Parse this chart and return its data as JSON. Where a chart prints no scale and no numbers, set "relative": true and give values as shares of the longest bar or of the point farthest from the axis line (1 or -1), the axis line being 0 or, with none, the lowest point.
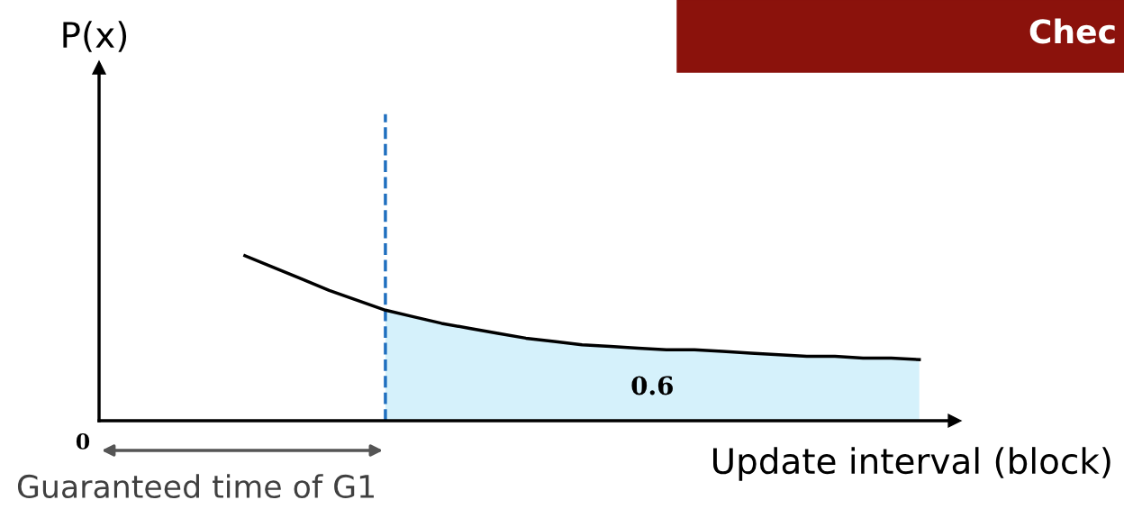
{
  "chart_data": {
    "type": "line",
    "relative": true,
    "title": "Chec",
    "xlabel": "Update interval (block)",
    "categories": [
      null,
      null,
      null,
      null,
      null,
      null,
      null,
      null,
      null,
      null,
      null,
      null,
      null,
      null,
      null,
      null,
      null,
      null,
      null,
      null,
      null,
      null,
      null,
      null,
      null
    ],
    "series": [
      {
        "color": "#000000",
        "values": [
          1,
          0.93,
          0.86,
          0.79,
          0.73,
          0.67,
          0.63,
          0.59,
          0.56,
          0.53,
          0.5,
          0.48,
          0.46,
          0.45,
          0.44,
          0.43,
          0.43,
          0.42,
          0.41,
          0.4,
          0.39,
          0.39,
          0.38,
          0.38,
          0.37
        ]
      },
      {
        "type": "area",
        "color": "#d5f1fb",
        "values": [
          null,
          null,
          null,
          null,
          null,
          0.67,
          0.63,
          0.59,
          0.56,
          0.53,
          0.5,
          0.48,
          0.46,
          0.45,
          0.44,
          0.43,
          0.43,
          0.42,
          0.41,
          0.4,
          0.39,
          0.39,
          0.38,
          0.38,
          0.37
        ]
      }
    ],
    "annotations": [
      "0",
      "0.6",
      "Guaranteed time of G1",
      "P(x)"
    ],
    "legend": false
  }
}
